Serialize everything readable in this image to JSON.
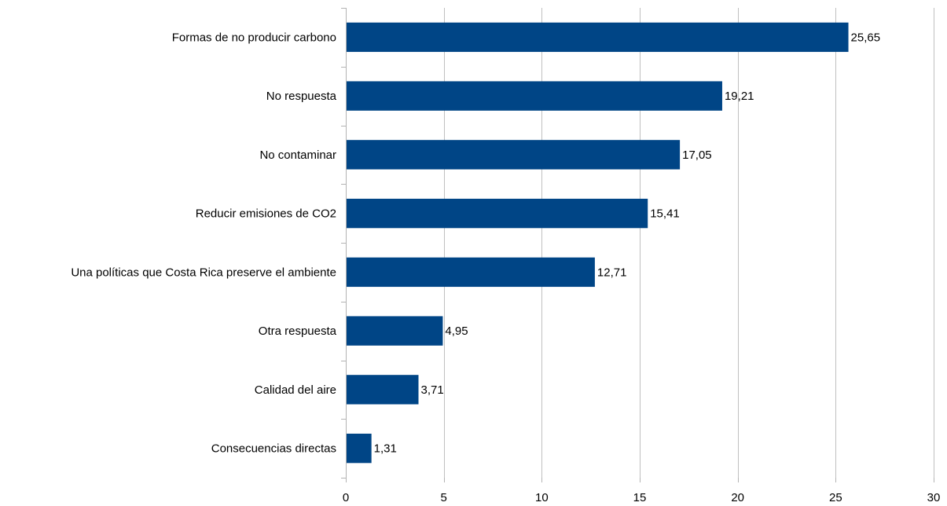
{
  "chart_data": {
    "type": "bar",
    "orientation": "horizontal",
    "categories": [
      "Formas de no producir carbono",
      "No respuesta",
      "No contaminar",
      "Reducir emisiones de CO2",
      "Una políticas que Costa Rica preserve el ambiente",
      "Otra respuesta",
      "Calidad del aire",
      "Consecuencias directas"
    ],
    "values": [
      25.65,
      19.21,
      17.05,
      15.41,
      12.71,
      4.95,
      3.71,
      1.31
    ],
    "value_labels": [
      "25,65",
      "19,21",
      "17,05",
      "15,41",
      "12,71",
      "4,95",
      "3,71",
      "1,31"
    ],
    "xlim": [
      0,
      30
    ],
    "xticks": [
      0,
      5,
      10,
      15,
      20,
      25,
      30
    ],
    "xtick_labels": [
      "0",
      "5",
      "10",
      "15",
      "20",
      "25",
      "30"
    ],
    "grid": true,
    "legend": "none",
    "bar_color": "#004586",
    "title": "",
    "xlabel": "",
    "ylabel": ""
  }
}
